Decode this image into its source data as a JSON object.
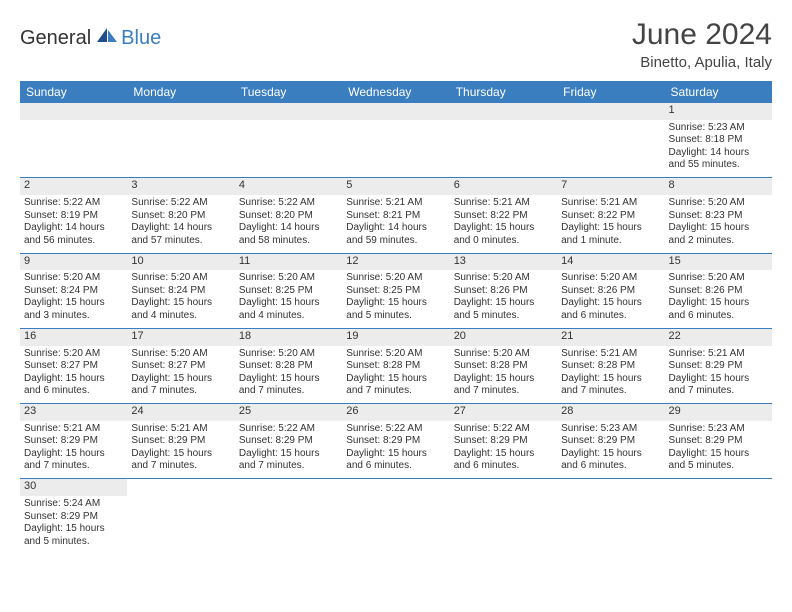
{
  "logo": {
    "general": "General",
    "blue": "Blue"
  },
  "header": {
    "title": "June 2024",
    "location": "Binetto, Apulia, Italy"
  },
  "colors": {
    "accent": "#3a7ebf",
    "stripe": "#ececec",
    "text": "#333333"
  },
  "weekdays": [
    "Sunday",
    "Monday",
    "Tuesday",
    "Wednesday",
    "Thursday",
    "Friday",
    "Saturday"
  ],
  "cells": {
    "d1": {
      "num": "1",
      "sr": "Sunrise: 5:23 AM",
      "ss": "Sunset: 8:18 PM",
      "dl": "Daylight: 14 hours and 55 minutes."
    },
    "d2": {
      "num": "2",
      "sr": "Sunrise: 5:22 AM",
      "ss": "Sunset: 8:19 PM",
      "dl": "Daylight: 14 hours and 56 minutes."
    },
    "d3": {
      "num": "3",
      "sr": "Sunrise: 5:22 AM",
      "ss": "Sunset: 8:20 PM",
      "dl": "Daylight: 14 hours and 57 minutes."
    },
    "d4": {
      "num": "4",
      "sr": "Sunrise: 5:22 AM",
      "ss": "Sunset: 8:20 PM",
      "dl": "Daylight: 14 hours and 58 minutes."
    },
    "d5": {
      "num": "5",
      "sr": "Sunrise: 5:21 AM",
      "ss": "Sunset: 8:21 PM",
      "dl": "Daylight: 14 hours and 59 minutes."
    },
    "d6": {
      "num": "6",
      "sr": "Sunrise: 5:21 AM",
      "ss": "Sunset: 8:22 PM",
      "dl": "Daylight: 15 hours and 0 minutes."
    },
    "d7": {
      "num": "7",
      "sr": "Sunrise: 5:21 AM",
      "ss": "Sunset: 8:22 PM",
      "dl": "Daylight: 15 hours and 1 minute."
    },
    "d8": {
      "num": "8",
      "sr": "Sunrise: 5:20 AM",
      "ss": "Sunset: 8:23 PM",
      "dl": "Daylight: 15 hours and 2 minutes."
    },
    "d9": {
      "num": "9",
      "sr": "Sunrise: 5:20 AM",
      "ss": "Sunset: 8:24 PM",
      "dl": "Daylight: 15 hours and 3 minutes."
    },
    "d10": {
      "num": "10",
      "sr": "Sunrise: 5:20 AM",
      "ss": "Sunset: 8:24 PM",
      "dl": "Daylight: 15 hours and 4 minutes."
    },
    "d11": {
      "num": "11",
      "sr": "Sunrise: 5:20 AM",
      "ss": "Sunset: 8:25 PM",
      "dl": "Daylight: 15 hours and 4 minutes."
    },
    "d12": {
      "num": "12",
      "sr": "Sunrise: 5:20 AM",
      "ss": "Sunset: 8:25 PM",
      "dl": "Daylight: 15 hours and 5 minutes."
    },
    "d13": {
      "num": "13",
      "sr": "Sunrise: 5:20 AM",
      "ss": "Sunset: 8:26 PM",
      "dl": "Daylight: 15 hours and 5 minutes."
    },
    "d14": {
      "num": "14",
      "sr": "Sunrise: 5:20 AM",
      "ss": "Sunset: 8:26 PM",
      "dl": "Daylight: 15 hours and 6 minutes."
    },
    "d15": {
      "num": "15",
      "sr": "Sunrise: 5:20 AM",
      "ss": "Sunset: 8:26 PM",
      "dl": "Daylight: 15 hours and 6 minutes."
    },
    "d16": {
      "num": "16",
      "sr": "Sunrise: 5:20 AM",
      "ss": "Sunset: 8:27 PM",
      "dl": "Daylight: 15 hours and 6 minutes."
    },
    "d17": {
      "num": "17",
      "sr": "Sunrise: 5:20 AM",
      "ss": "Sunset: 8:27 PM",
      "dl": "Daylight: 15 hours and 7 minutes."
    },
    "d18": {
      "num": "18",
      "sr": "Sunrise: 5:20 AM",
      "ss": "Sunset: 8:28 PM",
      "dl": "Daylight: 15 hours and 7 minutes."
    },
    "d19": {
      "num": "19",
      "sr": "Sunrise: 5:20 AM",
      "ss": "Sunset: 8:28 PM",
      "dl": "Daylight: 15 hours and 7 minutes."
    },
    "d20": {
      "num": "20",
      "sr": "Sunrise: 5:20 AM",
      "ss": "Sunset: 8:28 PM",
      "dl": "Daylight: 15 hours and 7 minutes."
    },
    "d21": {
      "num": "21",
      "sr": "Sunrise: 5:21 AM",
      "ss": "Sunset: 8:28 PM",
      "dl": "Daylight: 15 hours and 7 minutes."
    },
    "d22": {
      "num": "22",
      "sr": "Sunrise: 5:21 AM",
      "ss": "Sunset: 8:29 PM",
      "dl": "Daylight: 15 hours and 7 minutes."
    },
    "d23": {
      "num": "23",
      "sr": "Sunrise: 5:21 AM",
      "ss": "Sunset: 8:29 PM",
      "dl": "Daylight: 15 hours and 7 minutes."
    },
    "d24": {
      "num": "24",
      "sr": "Sunrise: 5:21 AM",
      "ss": "Sunset: 8:29 PM",
      "dl": "Daylight: 15 hours and 7 minutes."
    },
    "d25": {
      "num": "25",
      "sr": "Sunrise: 5:22 AM",
      "ss": "Sunset: 8:29 PM",
      "dl": "Daylight: 15 hours and 7 minutes."
    },
    "d26": {
      "num": "26",
      "sr": "Sunrise: 5:22 AM",
      "ss": "Sunset: 8:29 PM",
      "dl": "Daylight: 15 hours and 6 minutes."
    },
    "d27": {
      "num": "27",
      "sr": "Sunrise: 5:22 AM",
      "ss": "Sunset: 8:29 PM",
      "dl": "Daylight: 15 hours and 6 minutes."
    },
    "d28": {
      "num": "28",
      "sr": "Sunrise: 5:23 AM",
      "ss": "Sunset: 8:29 PM",
      "dl": "Daylight: 15 hours and 6 minutes."
    },
    "d29": {
      "num": "29",
      "sr": "Sunrise: 5:23 AM",
      "ss": "Sunset: 8:29 PM",
      "dl": "Daylight: 15 hours and 5 minutes."
    },
    "d30": {
      "num": "30",
      "sr": "Sunrise: 5:24 AM",
      "ss": "Sunset: 8:29 PM",
      "dl": "Daylight: 15 hours and 5 minutes."
    }
  },
  "layout": [
    [
      null,
      null,
      null,
      null,
      null,
      null,
      "d1"
    ],
    [
      "d2",
      "d3",
      "d4",
      "d5",
      "d6",
      "d7",
      "d8"
    ],
    [
      "d9",
      "d10",
      "d11",
      "d12",
      "d13",
      "d14",
      "d15"
    ],
    [
      "d16",
      "d17",
      "d18",
      "d19",
      "d20",
      "d21",
      "d22"
    ],
    [
      "d23",
      "d24",
      "d25",
      "d26",
      "d27",
      "d28",
      "d29"
    ],
    [
      "d30",
      null,
      null,
      null,
      null,
      null,
      null
    ]
  ]
}
